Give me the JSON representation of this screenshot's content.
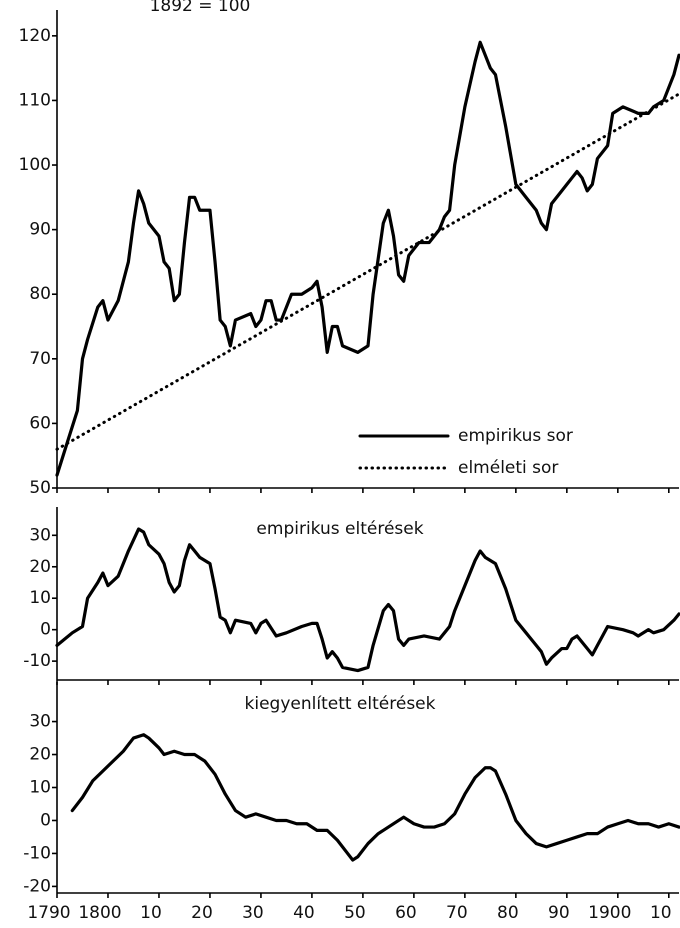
{
  "chart_data": [
    {
      "type": "line",
      "subtitle": "1892 = 100",
      "legend": "lower right",
      "xlim": [
        1790,
        1912
      ],
      "ylim": [
        50,
        124
      ],
      "yticks": [
        50,
        60,
        70,
        80,
        90,
        100,
        110,
        120
      ],
      "series": [
        {
          "name": "empirikus sor",
          "color": "#000",
          "dash": "solid",
          "x": [
            1790,
            1792,
            1794,
            1795,
            1796,
            1798,
            1799,
            1800,
            1802,
            1804,
            1805,
            1806,
            1807,
            1808,
            1810,
            1811,
            1812,
            1813,
            1814,
            1815,
            1816,
            1817,
            1818,
            1820,
            1821,
            1822,
            1823,
            1824,
            1825,
            1828,
            1829,
            1830,
            1831,
            1832,
            1833,
            1834,
            1836,
            1838,
            1840,
            1841,
            1842,
            1843,
            1844,
            1845,
            1846,
            1849,
            1851,
            1852,
            1854,
            1855,
            1856,
            1857,
            1858,
            1859,
            1861,
            1863,
            1865,
            1866,
            1867,
            1868,
            1870,
            1872,
            1873,
            1874,
            1875,
            1876,
            1878,
            1880,
            1882,
            1884,
            1885,
            1886,
            1887,
            1889,
            1890,
            1891,
            1892,
            1893,
            1894,
            1895,
            1896,
            1898,
            1899,
            1901,
            1904,
            1906,
            1907,
            1909,
            1911,
            1912
          ],
          "values": [
            52,
            57,
            62,
            70,
            73,
            78,
            79,
            76,
            79,
            85,
            91,
            96,
            94,
            91,
            89,
            85,
            84,
            79,
            80,
            88,
            95,
            95,
            93,
            93,
            85,
            76,
            75,
            72,
            76,
            77,
            75,
            76,
            79,
            79,
            76,
            76,
            80,
            80,
            81,
            82,
            78,
            71,
            75,
            75,
            72,
            71,
            72,
            80,
            91,
            93,
            89,
            83,
            82,
            86,
            88,
            88,
            90,
            92,
            93,
            100,
            109,
            116,
            119,
            117,
            115,
            114,
            106,
            97,
            95,
            93,
            91,
            90,
            94,
            96,
            97,
            98,
            99,
            98,
            96,
            97,
            101,
            103,
            108,
            109,
            108,
            108,
            109,
            110,
            114,
            117
          ]
        },
        {
          "name": "elméleti sor",
          "color": "#000",
          "dash": "dotted",
          "x": [
            1790,
            1912
          ],
          "values": [
            56,
            111
          ]
        }
      ]
    },
    {
      "type": "line",
      "title": "empirikus eltérések",
      "xlim": [
        1790,
        1912
      ],
      "ylim": [
        -16,
        39
      ],
      "yticks": [
        -10,
        0,
        10,
        20,
        30
      ],
      "series": [
        {
          "color": "#000",
          "dash": "solid",
          "x": [
            1790,
            1793,
            1795,
            1796,
            1798,
            1799,
            1800,
            1802,
            1804,
            1806,
            1807,
            1808,
            1810,
            1811,
            1812,
            1813,
            1814,
            1815,
            1816,
            1817,
            1818,
            1820,
            1821,
            1822,
            1823,
            1824,
            1825,
            1828,
            1829,
            1830,
            1831,
            1833,
            1835,
            1838,
            1840,
            1841,
            1842,
            1843,
            1844,
            1845,
            1846,
            1849,
            1851,
            1852,
            1854,
            1855,
            1856,
            1857,
            1858,
            1859,
            1862,
            1865,
            1866,
            1867,
            1868,
            1870,
            1872,
            1873,
            1874,
            1876,
            1878,
            1880,
            1882,
            1884,
            1885,
            1886,
            1887,
            1889,
            1890,
            1891,
            1892,
            1894,
            1895,
            1896,
            1898,
            1901,
            1903,
            1904,
            1906,
            1907,
            1909,
            1911,
            1912
          ],
          "values": [
            -5,
            -1,
            1,
            10,
            15,
            18,
            14,
            17,
            25,
            32,
            31,
            27,
            24,
            21,
            15,
            12,
            14,
            22,
            27,
            25,
            23,
            21,
            13,
            4,
            3,
            -1,
            3,
            2,
            -1,
            2,
            3,
            -2,
            -1,
            1,
            2,
            2,
            -3,
            -9,
            -7,
            -9,
            -12,
            -13,
            -12,
            -5,
            6,
            8,
            6,
            -3,
            -5,
            -3,
            -2,
            -3,
            -1,
            1,
            6,
            14,
            22,
            25,
            23,
            21,
            13,
            3,
            -1,
            -5,
            -7,
            -11,
            -9,
            -6,
            -6,
            -3,
            -2,
            -6,
            -8,
            -5,
            1,
            0,
            -1,
            -2,
            0,
            -1,
            0,
            3,
            5
          ]
        }
      ]
    },
    {
      "type": "line",
      "title": "kiegyenlített eltérések",
      "xlim": [
        1790,
        1912
      ],
      "ylim": [
        -22,
        42
      ],
      "yticks": [
        -20,
        -10,
        0,
        10,
        20,
        30
      ],
      "xticks": [
        1790,
        1800,
        {
          "value": 1810,
          "label": "10"
        },
        {
          "value": 1820,
          "label": "20"
        },
        {
          "value": 1830,
          "label": "30"
        },
        {
          "value": 1840,
          "label": "40"
        },
        {
          "value": 1850,
          "label": "50"
        },
        {
          "value": 1860,
          "label": "60"
        },
        {
          "value": 1870,
          "label": "70"
        },
        {
          "value": 1880,
          "label": "80"
        },
        {
          "value": 1890,
          "label": "90"
        },
        1900,
        {
          "value": 1910,
          "label": "10"
        }
      ],
      "series": [
        {
          "color": "#000",
          "dash": "solid",
          "x": [
            1793,
            1795,
            1797,
            1799,
            1801,
            1803,
            1805,
            1807,
            1808,
            1810,
            1811,
            1813,
            1815,
            1817,
            1819,
            1821,
            1823,
            1825,
            1827,
            1829,
            1831,
            1833,
            1835,
            1837,
            1839,
            1841,
            1843,
            1845,
            1847,
            1848,
            1849,
            1851,
            1853,
            1855,
            1857,
            1858,
            1860,
            1862,
            1864,
            1866,
            1868,
            1870,
            1872,
            1874,
            1875,
            1876,
            1878,
            1880,
            1882,
            1884,
            1886,
            1888,
            1890,
            1892,
            1894,
            1896,
            1898,
            1900,
            1902,
            1904,
            1906,
            1908,
            1910,
            1912
          ],
          "values": [
            3,
            7,
            12,
            15,
            18,
            21,
            25,
            26,
            25,
            22,
            20,
            21,
            20,
            20,
            18,
            14,
            8,
            3,
            1,
            2,
            1,
            0,
            0,
            -1,
            -1,
            -3,
            -3,
            -6,
            -10,
            -12,
            -11,
            -7,
            -4,
            -2,
            0,
            1,
            -1,
            -2,
            -2,
            -1,
            2,
            8,
            13,
            16,
            16,
            15,
            8,
            0,
            -4,
            -7,
            -8,
            -7,
            -6,
            -5,
            -4,
            -4,
            -2,
            -1,
            0,
            -1,
            -1,
            -2,
            -1,
            -2
          ]
        }
      ]
    }
  ]
}
